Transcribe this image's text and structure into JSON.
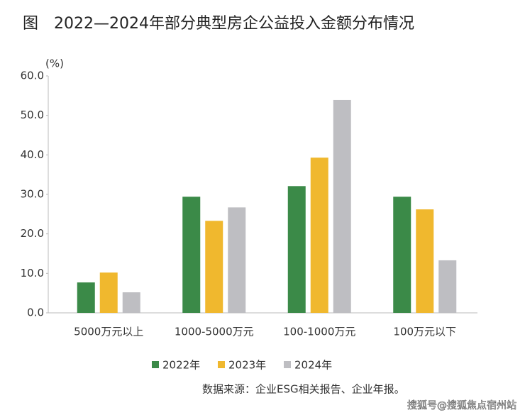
{
  "chart_data": {
    "type": "bar",
    "title": "图　2022—2024年部分典型房企公益投入金额分布情况",
    "y_label": "(%)",
    "categories": [
      "5000万元以上",
      "1000-5000万元",
      "100-1000万元",
      "100万元以下"
    ],
    "series": [
      {
        "name": "2022年",
        "color": "#3b8a48",
        "values": [
          7.7,
          29.4,
          32.1,
          29.4
        ]
      },
      {
        "name": "2023年",
        "color": "#f0b82e",
        "values": [
          10.2,
          23.3,
          39.3,
          26.2
        ]
      },
      {
        "name": "2024年",
        "color": "#bebec2",
        "values": [
          5.2,
          26.7,
          53.9,
          13.3
        ]
      }
    ],
    "ylim": [
      0,
      60
    ],
    "yticks": [
      {
        "value": 0,
        "label": "0.0"
      },
      {
        "value": 10,
        "label": "10.0"
      },
      {
        "value": 20,
        "label": "20.0"
      },
      {
        "value": 30,
        "label": "30.0"
      },
      {
        "value": 40,
        "label": "40.0"
      },
      {
        "value": 50,
        "label": "50.0"
      },
      {
        "value": 60,
        "label": "60.0"
      }
    ],
    "grid": false,
    "legend": "bottom",
    "source": "数据来源：企业ESG相关报告、企业年报。",
    "watermark": "搜狐号@搜狐焦点宿州站"
  }
}
